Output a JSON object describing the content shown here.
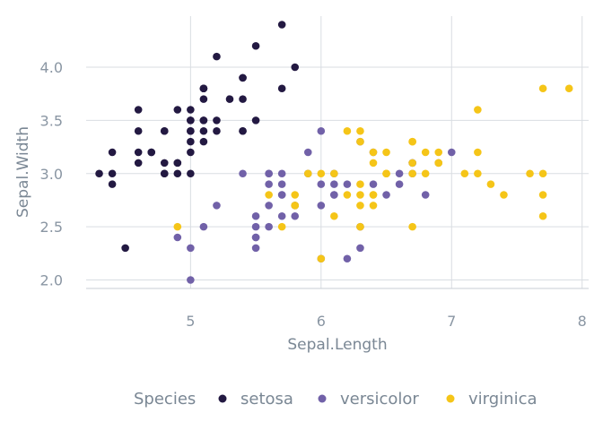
{
  "chart_data": {
    "type": "scatter",
    "xlabel": "Sepal.Length",
    "ylabel": "Sepal.Width",
    "xlim": [
      4.2,
      8.05
    ],
    "ylim": [
      1.92,
      4.48
    ],
    "xticks": [
      "5",
      "6",
      "7",
      "8"
    ],
    "yticks": [
      "2.0",
      "2.5",
      "3.0",
      "3.5",
      "4.0"
    ],
    "grid": true,
    "legend": {
      "title": "Species",
      "position": "bottom"
    },
    "series": [
      {
        "name": "setosa",
        "color": "#231942",
        "points": [
          [
            5.1,
            3.5
          ],
          [
            4.9,
            3.0
          ],
          [
            4.7,
            3.2
          ],
          [
            4.6,
            3.1
          ],
          [
            5.0,
            3.6
          ],
          [
            5.4,
            3.9
          ],
          [
            4.6,
            3.4
          ],
          [
            5.0,
            3.4
          ],
          [
            4.4,
            2.9
          ],
          [
            4.9,
            3.1
          ],
          [
            5.4,
            3.7
          ],
          [
            4.8,
            3.4
          ],
          [
            4.8,
            3.0
          ],
          [
            4.3,
            3.0
          ],
          [
            5.8,
            4.0
          ],
          [
            5.7,
            4.4
          ],
          [
            5.4,
            3.9
          ],
          [
            5.1,
            3.5
          ],
          [
            5.7,
            3.8
          ],
          [
            5.1,
            3.8
          ],
          [
            5.4,
            3.4
          ],
          [
            5.1,
            3.7
          ],
          [
            4.6,
            3.6
          ],
          [
            5.1,
            3.3
          ],
          [
            4.8,
            3.4
          ],
          [
            5.0,
            3.0
          ],
          [
            5.0,
            3.4
          ],
          [
            5.2,
            3.5
          ],
          [
            5.2,
            3.4
          ],
          [
            4.7,
            3.2
          ],
          [
            4.8,
            3.1
          ],
          [
            5.4,
            3.4
          ],
          [
            5.2,
            4.1
          ],
          [
            5.5,
            4.2
          ],
          [
            4.9,
            3.1
          ],
          [
            5.0,
            3.2
          ],
          [
            5.5,
            3.5
          ],
          [
            4.9,
            3.6
          ],
          [
            4.4,
            3.0
          ],
          [
            5.1,
            3.4
          ],
          [
            5.0,
            3.5
          ],
          [
            4.5,
            2.3
          ],
          [
            4.4,
            3.2
          ],
          [
            5.0,
            3.5
          ],
          [
            5.1,
            3.8
          ],
          [
            4.8,
            3.0
          ],
          [
            5.1,
            3.8
          ],
          [
            4.6,
            3.2
          ],
          [
            5.3,
            3.7
          ],
          [
            5.0,
            3.3
          ]
        ]
      },
      {
        "name": "versicolor",
        "color": "#7161a8",
        "points": [
          [
            7.0,
            3.2
          ],
          [
            6.4,
            3.2
          ],
          [
            6.9,
            3.1
          ],
          [
            5.5,
            2.3
          ],
          [
            6.5,
            2.8
          ],
          [
            5.7,
            2.8
          ],
          [
            6.3,
            3.3
          ],
          [
            4.9,
            2.4
          ],
          [
            6.6,
            2.9
          ],
          [
            5.2,
            2.7
          ],
          [
            5.0,
            2.0
          ],
          [
            5.9,
            3.0
          ],
          [
            6.0,
            2.2
          ],
          [
            6.1,
            2.9
          ],
          [
            5.6,
            2.9
          ],
          [
            6.7,
            3.1
          ],
          [
            5.6,
            3.0
          ],
          [
            5.8,
            2.7
          ],
          [
            6.2,
            2.2
          ],
          [
            5.6,
            2.5
          ],
          [
            5.9,
            3.2
          ],
          [
            6.1,
            2.8
          ],
          [
            6.3,
            2.5
          ],
          [
            6.1,
            2.8
          ],
          [
            6.4,
            2.9
          ],
          [
            6.6,
            3.0
          ],
          [
            6.8,
            2.8
          ],
          [
            6.7,
            3.0
          ],
          [
            6.0,
            2.9
          ],
          [
            5.7,
            2.6
          ],
          [
            5.5,
            2.4
          ],
          [
            5.5,
            2.4
          ],
          [
            5.8,
            2.7
          ],
          [
            6.0,
            2.7
          ],
          [
            5.4,
            3.0
          ],
          [
            6.0,
            3.4
          ],
          [
            6.7,
            3.1
          ],
          [
            6.3,
            2.3
          ],
          [
            5.6,
            3.0
          ],
          [
            5.5,
            2.5
          ],
          [
            5.5,
            2.6
          ],
          [
            6.1,
            3.0
          ],
          [
            5.8,
            2.6
          ],
          [
            5.0,
            2.3
          ],
          [
            5.6,
            2.7
          ],
          [
            5.7,
            3.0
          ],
          [
            5.7,
            2.9
          ],
          [
            6.2,
            2.9
          ],
          [
            5.1,
            2.5
          ],
          [
            5.7,
            2.8
          ]
        ]
      },
      {
        "name": "virginica",
        "color": "#f5c518",
        "points": [
          [
            6.3,
            3.3
          ],
          [
            5.8,
            2.7
          ],
          [
            7.1,
            3.0
          ],
          [
            6.3,
            2.9
          ],
          [
            6.5,
            3.0
          ],
          [
            7.6,
            3.0
          ],
          [
            4.9,
            2.5
          ],
          [
            7.3,
            2.9
          ],
          [
            6.7,
            2.5
          ],
          [
            7.2,
            3.6
          ],
          [
            6.5,
            3.2
          ],
          [
            6.4,
            2.7
          ],
          [
            6.8,
            3.0
          ],
          [
            5.7,
            2.5
          ],
          [
            5.8,
            2.8
          ],
          [
            6.4,
            3.2
          ],
          [
            6.5,
            3.0
          ],
          [
            7.7,
            3.8
          ],
          [
            7.7,
            2.6
          ],
          [
            6.0,
            2.2
          ],
          [
            6.9,
            3.2
          ],
          [
            5.6,
            2.8
          ],
          [
            7.7,
            2.8
          ],
          [
            6.3,
            2.7
          ],
          [
            6.7,
            3.3
          ],
          [
            7.2,
            3.2
          ],
          [
            6.2,
            2.8
          ],
          [
            6.1,
            3.0
          ],
          [
            6.4,
            2.8
          ],
          [
            7.2,
            3.0
          ],
          [
            7.4,
            2.8
          ],
          [
            7.9,
            3.8
          ],
          [
            6.4,
            2.8
          ],
          [
            6.3,
            2.8
          ],
          [
            6.1,
            2.6
          ],
          [
            7.7,
            3.0
          ],
          [
            6.3,
            3.4
          ],
          [
            6.4,
            3.1
          ],
          [
            6.0,
            3.0
          ],
          [
            6.9,
            3.1
          ],
          [
            6.7,
            3.1
          ],
          [
            6.9,
            3.1
          ],
          [
            5.8,
            2.7
          ],
          [
            6.8,
            3.2
          ],
          [
            6.7,
            3.3
          ],
          [
            6.7,
            3.0
          ],
          [
            6.3,
            2.5
          ],
          [
            6.5,
            3.0
          ],
          [
            6.2,
            3.4
          ],
          [
            5.9,
            3.0
          ]
        ]
      }
    ]
  }
}
